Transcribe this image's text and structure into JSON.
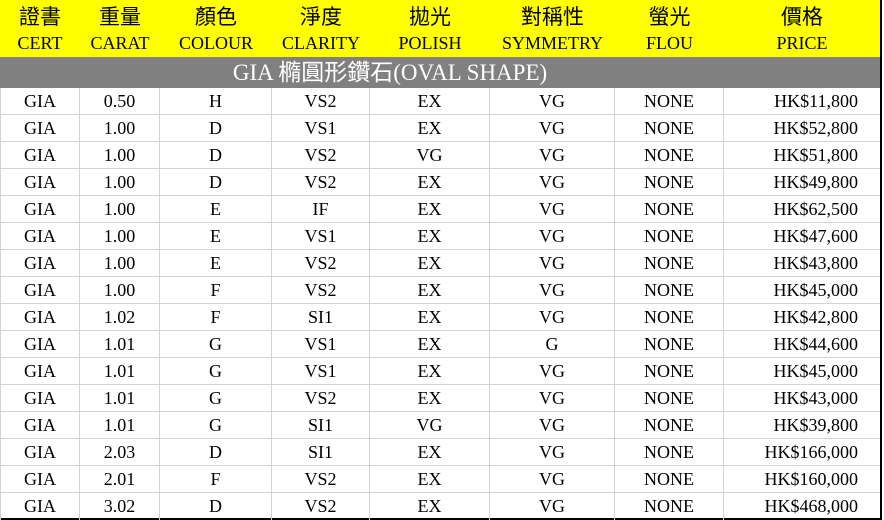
{
  "header": {
    "columns": [
      {
        "zh": "證書",
        "en": "CERT"
      },
      {
        "zh": "重量",
        "en": "CARAT"
      },
      {
        "zh": "顏色",
        "en": "COLOUR"
      },
      {
        "zh": "淨度",
        "en": "CLARITY"
      },
      {
        "zh": "拋光",
        "en": "POLISH"
      },
      {
        "zh": "對稱性",
        "en": "SYMMETRY"
      },
      {
        "zh": "螢光",
        "en": "FLOU"
      },
      {
        "zh": "價格",
        "en": "PRICE"
      }
    ]
  },
  "banner": {
    "title": "GIA 橢圓形鑽石(OVAL SHAPE)"
  },
  "table": {
    "rows": [
      [
        "GIA",
        "0.50",
        "H",
        "VS2",
        "EX",
        "VG",
        "NONE",
        "HK$11,800"
      ],
      [
        "GIA",
        "1.00",
        "D",
        "VS1",
        "EX",
        "VG",
        "NONE",
        "HK$52,800"
      ],
      [
        "GIA",
        "1.00",
        "D",
        "VS2",
        "VG",
        "VG",
        "NONE",
        "HK$51,800"
      ],
      [
        "GIA",
        "1.00",
        "D",
        "VS2",
        "EX",
        "VG",
        "NONE",
        "HK$49,800"
      ],
      [
        "GIA",
        "1.00",
        "E",
        "IF",
        "EX",
        "VG",
        "NONE",
        "HK$62,500"
      ],
      [
        "GIA",
        "1.00",
        "E",
        "VS1",
        "EX",
        "VG",
        "NONE",
        "HK$47,600"
      ],
      [
        "GIA",
        "1.00",
        "E",
        "VS2",
        "EX",
        "VG",
        "NONE",
        "HK$43,800"
      ],
      [
        "GIA",
        "1.00",
        "F",
        "VS2",
        "EX",
        "VG",
        "NONE",
        "HK$45,000"
      ],
      [
        "GIA",
        "1.02",
        "F",
        "SI1",
        "EX",
        "VG",
        "NONE",
        "HK$42,800"
      ],
      [
        "GIA",
        "1.01",
        "G",
        "VS1",
        "EX",
        "G",
        "NONE",
        "HK$44,600"
      ],
      [
        "GIA",
        "1.01",
        "G",
        "VS1",
        "EX",
        "VG",
        "NONE",
        "HK$45,000"
      ],
      [
        "GIA",
        "1.01",
        "G",
        "VS2",
        "EX",
        "VG",
        "NONE",
        "HK$43,000"
      ],
      [
        "GIA",
        "1.01",
        "G",
        "SI1",
        "VG",
        "VG",
        "NONE",
        "HK$39,800"
      ],
      [
        "GIA",
        "2.03",
        "D",
        "SI1",
        "EX",
        "VG",
        "NONE",
        "HK$166,000"
      ],
      [
        "GIA",
        "2.01",
        "F",
        "VS2",
        "EX",
        "VG",
        "NONE",
        "HK$160,000"
      ],
      [
        "GIA",
        "3.02",
        "D",
        "VS2",
        "EX",
        "VG",
        "NONE",
        "HK$468,000"
      ]
    ]
  },
  "colors": {
    "header_bg": "#FFFF00",
    "header_text": "#000000",
    "banner_bg": "#808080",
    "banner_text": "#FFFFFF",
    "grid_line": "#D0D4DA",
    "outer_border": "#000000",
    "row_bg": "#FFFFFF"
  }
}
